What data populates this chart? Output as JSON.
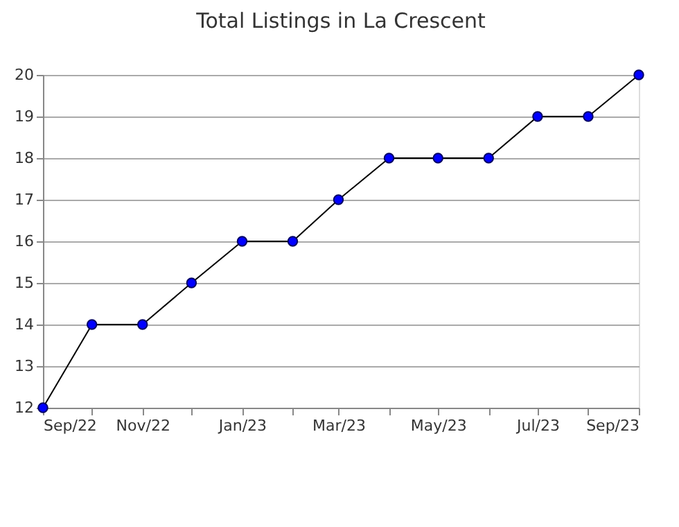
{
  "chart_data": {
    "type": "line",
    "title": "Total Listings in La Crescent",
    "x": [
      "2022-09",
      "2022-10",
      "2022-11",
      "2022-12",
      "2023-01",
      "2023-02",
      "2023-03",
      "2023-04",
      "2023-05",
      "2023-06",
      "2023-07",
      "2023-08",
      "2023-09"
    ],
    "series": [
      {
        "color": "#0000ff",
        "values": [
          12,
          14,
          14,
          15,
          16,
          16,
          17,
          18,
          18,
          18,
          19,
          19,
          20
        ]
      }
    ],
    "xlim": [
      "2022-09",
      "2023-09"
    ],
    "xticks": [
      {
        "value": "2022-09",
        "label": "Sep/22"
      },
      {
        "value": "2022-10",
        "label": null
      },
      {
        "value": "2022-11",
        "label": "Nov/22"
      },
      {
        "value": "2022-12",
        "label": null
      },
      {
        "value": "2023-01",
        "label": "Jan/23"
      },
      {
        "value": "2023-02",
        "label": null
      },
      {
        "value": "2023-03",
        "label": "Mar/23"
      },
      {
        "value": "2023-04",
        "label": null
      },
      {
        "value": "2023-05",
        "label": "May/23"
      },
      {
        "value": "2023-06",
        "label": null
      },
      {
        "value": "2023-07",
        "label": "Jul/23"
      },
      {
        "value": "2023-08",
        "label": null
      },
      {
        "value": "2023-09",
        "label": "Sep/23"
      }
    ],
    "ylim": [
      12,
      20
    ],
    "yticks": [
      12,
      13,
      14,
      15,
      16,
      17,
      18,
      19,
      20
    ],
    "grid": "y",
    "marker": "circle",
    "line_style": "solid",
    "legend": false
  }
}
